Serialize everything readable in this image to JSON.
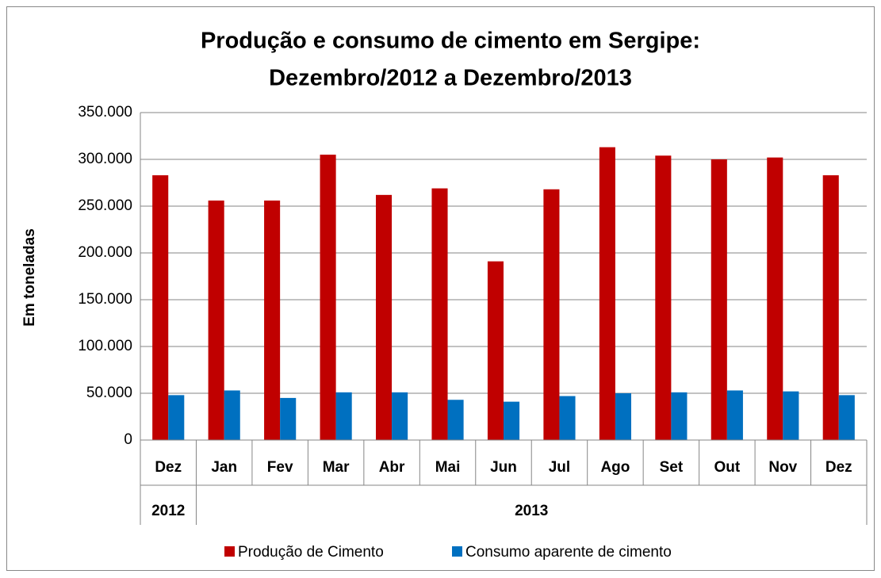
{
  "chart_data": {
    "type": "bar",
    "title": "Produção e consumo de cimento em Sergipe:",
    "subtitle": "Dezembro/2012 a Dezembro/2013",
    "y_label": "Em toneladas",
    "categories": [
      "Dez",
      "Jan",
      "Fev",
      "Mar",
      "Abr",
      "Mai",
      "Jun",
      "Jul",
      "Ago",
      "Set",
      "Out",
      "Nov",
      "Dez"
    ],
    "x_groups": [
      {
        "label": "2012",
        "count": 1
      },
      {
        "label": "2013",
        "count": 12
      }
    ],
    "series": [
      {
        "name": "Produção de Cimento",
        "color": "#c00000",
        "values": [
          283000,
          256000,
          256000,
          305000,
          262000,
          269000,
          191000,
          268000,
          313000,
          304000,
          300000,
          302000,
          283000
        ]
      },
      {
        "name": "Consumo aparente de cimento",
        "color": "#0070c0",
        "values": [
          48000,
          53000,
          45000,
          51000,
          51000,
          43000,
          41000,
          47000,
          50000,
          51000,
          53000,
          52000,
          48000
        ]
      }
    ],
    "ylim": [
      0,
      350000
    ],
    "yticks": [
      0,
      {
        "value": 50000,
        "label": "50.000"
      },
      {
        "value": 100000,
        "label": "100.000"
      },
      {
        "value": 150000,
        "label": "150.000"
      },
      {
        "value": 200000,
        "label": "200.000"
      },
      {
        "value": 250000,
        "label": "250.000"
      },
      {
        "value": 300000,
        "label": "300.000"
      },
      {
        "value": 350000,
        "label": "350.000"
      }
    ],
    "grid": true,
    "legend": "bottom"
  }
}
